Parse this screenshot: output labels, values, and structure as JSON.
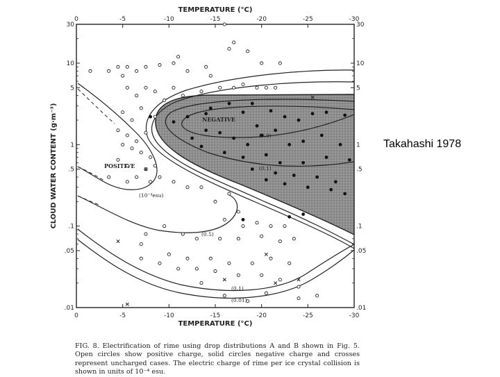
{
  "chart_data": {
    "type": "scatter",
    "title": "",
    "xlabel": "TEMPERATURE (°C)",
    "ylabel": "CLOUD WATER CONTENT (g·m⁻³)",
    "x_ticks": [
      "0",
      "-5",
      "-10",
      "-15",
      "-20",
      "-25",
      "-30"
    ],
    "y_ticks": [
      "30",
      "10",
      "5",
      "1",
      ".5",
      ".1",
      ".05",
      ".01"
    ],
    "y_scale": "log",
    "xlim": [
      0,
      -30
    ],
    "ylim": [
      0.01,
      30
    ],
    "region_labels": {
      "negative": "NEGATIVE",
      "positive": "POSITIVE"
    },
    "contour_labels": [
      "(10⁻⁴esu)",
      "(0.5)",
      "(0.1)",
      "(0.01)",
      "(0.9)",
      "(0.1)"
    ],
    "series": [
      {
        "name": "Open circles (positive charge)",
        "marker": "open-circle",
        "points": [
          [
            -1.5,
            8
          ],
          [
            -3.5,
            8
          ],
          [
            -4.5,
            9
          ],
          [
            -5,
            7
          ],
          [
            -5.5,
            9
          ],
          [
            -6.5,
            8
          ],
          [
            -7.5,
            9
          ],
          [
            -9,
            9.5
          ],
          [
            -10.5,
            10
          ],
          [
            -11,
            12
          ],
          [
            -12,
            8
          ],
          [
            -14,
            9
          ],
          [
            -14.5,
            7
          ],
          [
            -16,
            30
          ],
          [
            -16.5,
            15
          ],
          [
            -17,
            18
          ],
          [
            -18.5,
            14
          ],
          [
            -20,
            10
          ],
          [
            -22,
            10
          ],
          [
            -5.5,
            5
          ],
          [
            -6.5,
            4
          ],
          [
            -7.5,
            5
          ],
          [
            -8.5,
            4.5
          ],
          [
            -9.5,
            3.5
          ],
          [
            -10.5,
            5
          ],
          [
            -11.5,
            4
          ],
          [
            -13.5,
            4.5
          ],
          [
            -15.5,
            5
          ],
          [
            -17,
            5
          ],
          [
            -18,
            5.5
          ],
          [
            -19.5,
            5
          ],
          [
            -20.5,
            5
          ],
          [
            -21.5,
            5
          ],
          [
            -5,
            2.5
          ],
          [
            -6,
            2
          ],
          [
            -7,
            2.8
          ],
          [
            -8.5,
            2.2
          ],
          [
            -4.5,
            1.5
          ],
          [
            -5.5,
            1.3
          ],
          [
            -6.5,
            1.1
          ],
          [
            -7.5,
            1.4
          ],
          [
            -5,
            1
          ],
          [
            -6,
            0.9
          ],
          [
            -7,
            0.8
          ],
          [
            -8,
            0.7
          ],
          [
            -4.5,
            0.65
          ],
          [
            -5.5,
            0.55
          ],
          [
            -7.5,
            0.5
          ],
          [
            -8.5,
            0.55
          ],
          [
            -3.5,
            0.4
          ],
          [
            -5.5,
            0.35
          ],
          [
            -6.5,
            0.4
          ],
          [
            -8,
            0.35
          ],
          [
            -9,
            0.4
          ],
          [
            -10.5,
            0.35
          ],
          [
            -12,
            0.3
          ],
          [
            -13.5,
            0.3
          ],
          [
            -15,
            0.2
          ],
          [
            -16.5,
            0.25
          ],
          [
            -17.5,
            0.15
          ],
          [
            -16,
            0.12
          ],
          [
            -18,
            0.1
          ],
          [
            -19.5,
            0.11
          ],
          [
            -21,
            0.1
          ],
          [
            -22.5,
            0.1
          ],
          [
            -7.5,
            0.08
          ],
          [
            -9.5,
            0.1
          ],
          [
            -11.5,
            0.08
          ],
          [
            -13,
            0.07
          ],
          [
            -15.5,
            0.07
          ],
          [
            -17.5,
            0.07
          ],
          [
            -20,
            0.075
          ],
          [
            -22,
            0.065
          ],
          [
            -23.5,
            0.07
          ],
          [
            -7,
            0.06
          ],
          [
            -10,
            0.045
          ],
          [
            -12,
            0.04
          ],
          [
            -14.5,
            0.04
          ],
          [
            -16.5,
            0.035
          ],
          [
            -19,
            0.035
          ],
          [
            -21,
            0.04
          ],
          [
            -23,
            0.035
          ],
          [
            -7,
            0.04
          ],
          [
            -9,
            0.035
          ],
          [
            -11,
            0.03
          ],
          [
            -13,
            0.03
          ],
          [
            -15,
            0.028
          ],
          [
            -17.5,
            0.025
          ],
          [
            -20,
            0.025
          ],
          [
            -22,
            0.022
          ],
          [
            -24,
            0.018
          ],
          [
            -13.5,
            0.02
          ],
          [
            -20.5,
            0.015
          ],
          [
            -24,
            0.013
          ],
          [
            -26,
            0.014
          ],
          [
            -16,
            0.014
          ],
          [
            -18.5,
            0.012
          ]
        ]
      },
      {
        "name": "Solid circles (negative charge)",
        "marker": "filled-circle",
        "points": [
          [
            -10.5,
            1.9
          ],
          [
            -12,
            2.2
          ],
          [
            -14,
            2.4
          ],
          [
            -14.5,
            2.8
          ],
          [
            -16.5,
            3.2
          ],
          [
            -18,
            2.5
          ],
          [
            -19.5,
            1.7
          ],
          [
            -21,
            2.6
          ],
          [
            -22.5,
            2.2
          ],
          [
            -24,
            2.0
          ],
          [
            -25.5,
            2.4
          ],
          [
            -27,
            2.5
          ],
          [
            -29,
            2.3
          ],
          [
            -12.5,
            1.2
          ],
          [
            -14,
            1.5
          ],
          [
            -15.5,
            1.4
          ],
          [
            -17,
            1.2
          ],
          [
            -18.5,
            1.0
          ],
          [
            -20,
            1.3
          ],
          [
            -21.5,
            1.5
          ],
          [
            -23,
            1.0
          ],
          [
            -24.5,
            1.1
          ],
          [
            -26.5,
            1.3
          ],
          [
            -28.5,
            1.0
          ],
          [
            -13.5,
            0.95
          ],
          [
            -16,
            0.8
          ],
          [
            -18,
            0.7
          ],
          [
            -20.5,
            0.75
          ],
          [
            -22,
            0.6
          ],
          [
            -24.5,
            0.6
          ],
          [
            -27,
            0.7
          ],
          [
            -29.5,
            0.65
          ],
          [
            -19,
            0.5
          ],
          [
            -21.5,
            0.45
          ],
          [
            -23.5,
            0.42
          ],
          [
            -26,
            0.4
          ],
          [
            -28,
            0.35
          ],
          [
            -25,
            0.3
          ],
          [
            -27.5,
            0.28
          ],
          [
            -29,
            0.25
          ],
          [
            -20.5,
            0.37
          ],
          [
            -22.5,
            0.33
          ],
          [
            -18,
            0.12
          ],
          [
            -23,
            0.13
          ],
          [
            -24.5,
            0.14
          ],
          [
            -19,
            3.2
          ],
          [
            -8,
            2.2
          ]
        ]
      },
      {
        "name": "Crosses (uncharged)",
        "marker": "cross",
        "points": [
          [
            -25.5,
            3.8
          ],
          [
            -7.5,
            0.5
          ],
          [
            -4.5,
            0.065
          ],
          [
            -20.5,
            0.045
          ],
          [
            -16,
            0.022
          ],
          [
            -21.5,
            0.02
          ],
          [
            -24,
            0.022
          ],
          [
            -5.5,
            0.011
          ]
        ]
      }
    ]
  },
  "caption": {
    "text": "FIG. 8. Electrification of rime using drop distributions A and B shown in Fig. 5. Open circles show positive charge, solid circles negative charge and crosses represent uncharged cases. The electric charge of rime per ice crystal collision is shown in units of 10⁻⁴ esu."
  },
  "side_label": "Takahashi 1978",
  "colors": {
    "shaded_region": "#8f8f8f",
    "ink": "#222222",
    "background": "#ffffff"
  }
}
